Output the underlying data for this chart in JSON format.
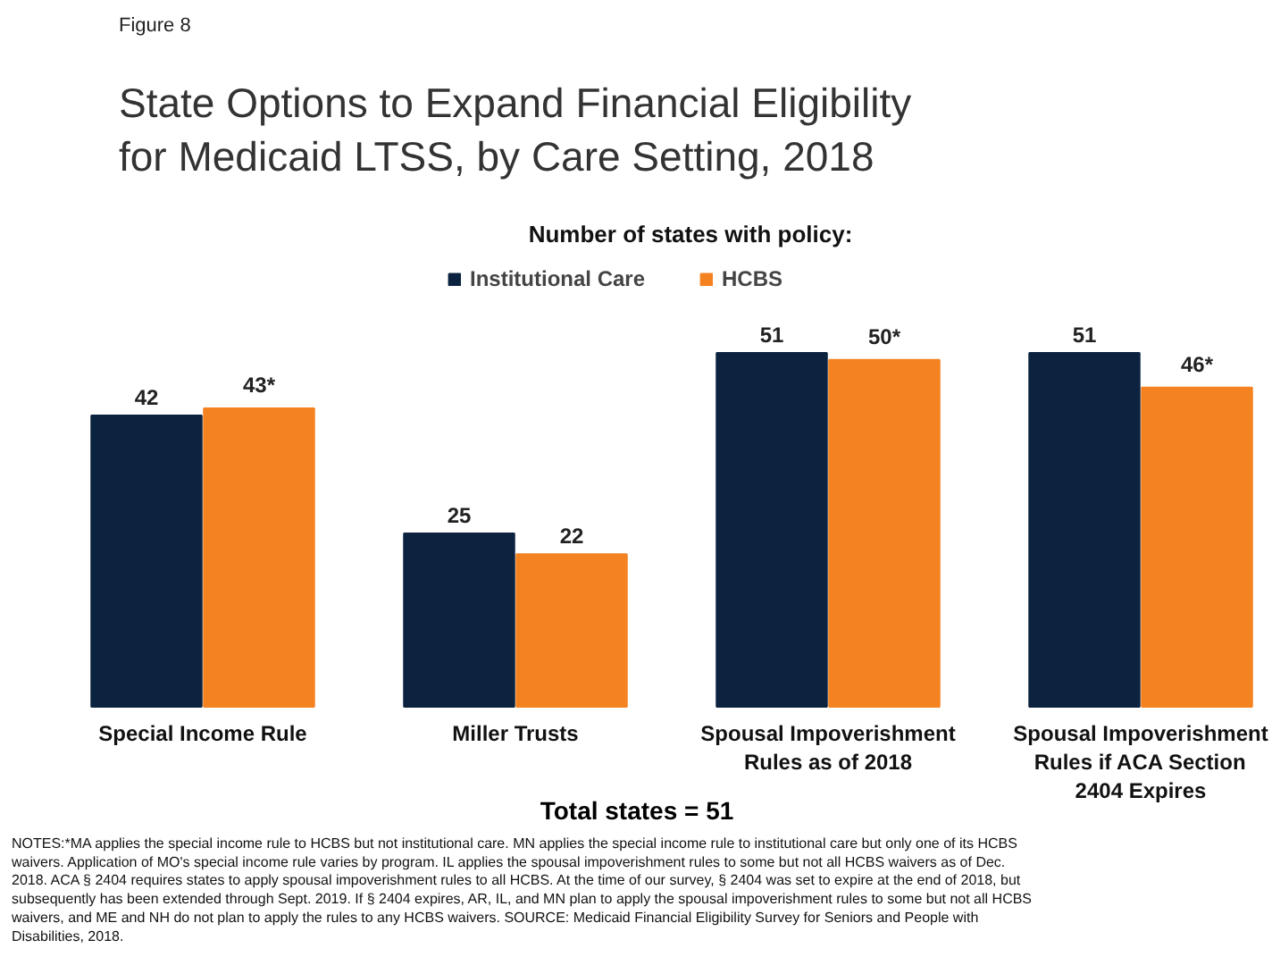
{
  "chart_data": {
    "type": "bar",
    "title": "State Options to Expand Financial Eligibility for Medicaid LTSS, by Care Setting, 2018",
    "subtitle": "Number of states with policy:",
    "categories": [
      "Special Income Rule",
      "Miller Trusts",
      "Spousal Impoverishment Rules as of 2018",
      "Spousal Impoverishment Rules if ACA Section 2404 Expires"
    ],
    "series": [
      {
        "name": "Institutional Care",
        "color": "#0c2340",
        "values": [
          42,
          25,
          51,
          51
        ],
        "value_labels": [
          "42",
          "25",
          "51",
          "51"
        ]
      },
      {
        "name": "HCBS",
        "color": "#f58220",
        "values": [
          43,
          22,
          50,
          46
        ],
        "value_labels": [
          "43*",
          "22",
          "50*",
          "46*"
        ]
      }
    ],
    "legend": "top",
    "annotations": [
      "Figure 8",
      "Total states = 51",
      "NOTES:*MA applies the special income rule to HCBS but not institutional care. MN applies the special income rule to institutional care but only one of its HCBS waivers. Application of MO's special income rule varies by program. IL applies the spousal impoverishment rules to some but not all HCBS waivers as of Dec. 2018. ACA § 2404 requires states to apply spousal impoverishment rules to all HCBS. At the time of our survey, § 2404 was set to expire at the end of 2018, but subsequently has been extended through Sept. 2019. If § 2404 expires, AR, IL, and MN plan to apply the spousal impoverishment rules to some but not all HCBS waivers, and ME and NH do not plan to apply the rules to any HCBS waivers. SOURCE: Medicaid Financial Eligibility Survey for Seniors and People with Disabilities, 2018."
    ]
  }
}
